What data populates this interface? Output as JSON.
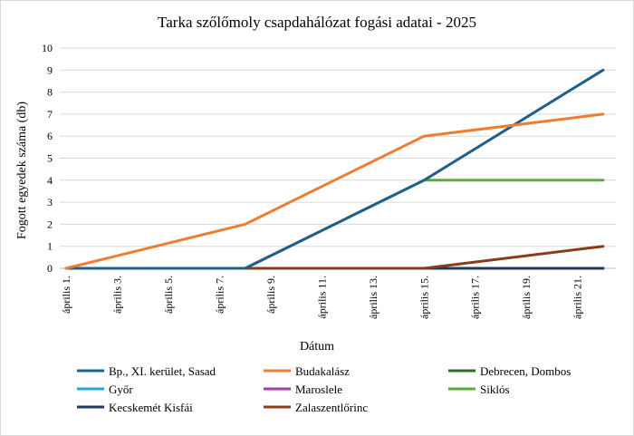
{
  "chart_data": {
    "type": "line",
    "title": "Tarka szőlőmoly csapdahálózat fogási adatai - 2025",
    "xlabel": "Dátum",
    "ylabel": "Fogott egyedek száma (db)",
    "ylim": [
      0,
      10
    ],
    "yticks": [
      "0",
      "1",
      "2",
      "3",
      "4",
      "5",
      "6",
      "7",
      "8",
      "9",
      "10"
    ],
    "x_start": "2025-04-01",
    "x_end": "2025-04-22",
    "xticks": [
      {
        "date": "2025-04-01",
        "label": "április 1."
      },
      {
        "date": "2025-04-03",
        "label": "április 3."
      },
      {
        "date": "2025-04-05",
        "label": "április 5."
      },
      {
        "date": "2025-04-07",
        "label": "április 7."
      },
      {
        "date": "2025-04-09",
        "label": "április 9."
      },
      {
        "date": "2025-04-11",
        "label": "április 11."
      },
      {
        "date": "2025-04-13",
        "label": "április 13."
      },
      {
        "date": "2025-04-15",
        "label": "április 15."
      },
      {
        "date": "2025-04-17",
        "label": "április 17."
      },
      {
        "date": "2025-04-19",
        "label": "április 19."
      },
      {
        "date": "2025-04-21",
        "label": "április 21."
      }
    ],
    "grid": true,
    "legend_position": "bottom",
    "series": [
      {
        "name": "Bp., XI. kerület, Sasad",
        "color": "#1f5f8b",
        "points": [
          [
            "2025-04-01",
            0
          ],
          [
            "2025-04-08",
            0
          ],
          [
            "2025-04-15",
            4
          ],
          [
            "2025-04-22",
            9
          ]
        ]
      },
      {
        "name": "Budakalász",
        "color": "#ed7d31",
        "points": [
          [
            "2025-04-01",
            0
          ],
          [
            "2025-04-08",
            2
          ],
          [
            "2025-04-15",
            6
          ],
          [
            "2025-04-22",
            7
          ]
        ]
      },
      {
        "name": "Debrecen, Dombos",
        "color": "#2e6b2a",
        "points": [
          [
            "2025-04-01",
            0
          ],
          [
            "2025-04-08",
            0
          ],
          [
            "2025-04-15",
            0
          ],
          [
            "2025-04-22",
            0
          ]
        ]
      },
      {
        "name": "Győr",
        "color": "#22a6dd",
        "points": [
          [
            "2025-04-01",
            0
          ],
          [
            "2025-04-08",
            0
          ],
          [
            "2025-04-15",
            0
          ],
          [
            "2025-04-22",
            0
          ]
        ]
      },
      {
        "name": "Maroslele",
        "color": "#a63aa6",
        "points": [
          [
            "2025-04-01",
            0
          ],
          [
            "2025-04-08",
            0
          ],
          [
            "2025-04-15",
            0
          ],
          [
            "2025-04-22",
            0
          ]
        ]
      },
      {
        "name": "Siklós",
        "color": "#5aab3a",
        "points": [
          [
            "2025-04-01",
            0
          ],
          [
            "2025-04-08",
            0
          ],
          [
            "2025-04-15",
            4
          ],
          [
            "2025-04-22",
            4
          ]
        ]
      },
      {
        "name": "Kecskemét Kisfái",
        "color": "#1f3a5a",
        "points": [
          [
            "2025-04-01",
            0
          ],
          [
            "2025-04-08",
            0
          ],
          [
            "2025-04-15",
            0
          ],
          [
            "2025-04-22",
            0
          ]
        ]
      },
      {
        "name": "Zalaszentlőrinc",
        "color": "#8b3a1a",
        "points": [
          [
            "2025-04-01",
            0
          ],
          [
            "2025-04-08",
            0
          ],
          [
            "2025-04-15",
            0
          ],
          [
            "2025-04-22",
            1
          ]
        ]
      }
    ]
  }
}
